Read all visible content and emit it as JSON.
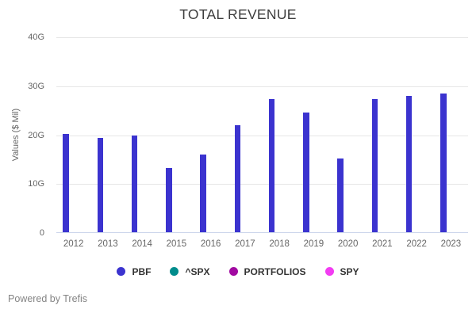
{
  "title": "TOTAL REVENUE",
  "footer": {
    "powered_by": "Powered by Trefis"
  },
  "colors": {
    "pbf_blue": "#3b33cf",
    "spx_teal": "#008c8c",
    "portfolios_purple": "#a10aa1",
    "spy_magenta": "#f23cf2",
    "gridline": "#e6e6e6",
    "axis_line": "#ccd6eb",
    "tick_text": "#666666",
    "title_text": "#3d3d3d",
    "legend_text": "#333333",
    "footer_text": "#848484"
  },
  "chart_data": {
    "type": "bar",
    "title": "TOTAL REVENUE",
    "xlabel": "",
    "ylabel": "Values ($ Mil)",
    "categories": [
      "2012",
      "2013",
      "2014",
      "2015",
      "2016",
      "2017",
      "2018",
      "2019",
      "2020",
      "2021",
      "2022",
      "2023"
    ],
    "series": [
      {
        "name": "PBF",
        "color": "#3b33cf",
        "values": [
          20.1,
          19.2,
          19.8,
          13.1,
          15.9,
          21.8,
          27.2,
          24.5,
          15.1,
          27.2,
          27.8,
          28.4
        ]
      },
      {
        "name": "^SPX",
        "color": "#008c8c",
        "values": []
      },
      {
        "name": "PORTFOLIOS",
        "color": "#a10aa1",
        "values": []
      },
      {
        "name": "SPY",
        "color": "#f23cf2",
        "values": []
      }
    ],
    "value_unit": "G",
    "ylim": [
      0,
      40
    ],
    "yticks": [
      {
        "value": 0,
        "label": "0"
      },
      {
        "value": 10,
        "label": "10G"
      },
      {
        "value": 20,
        "label": "20G"
      },
      {
        "value": 30,
        "label": "30G"
      },
      {
        "value": 40,
        "label": "40G"
      }
    ],
    "grid": true,
    "legend_position": "bottom"
  }
}
